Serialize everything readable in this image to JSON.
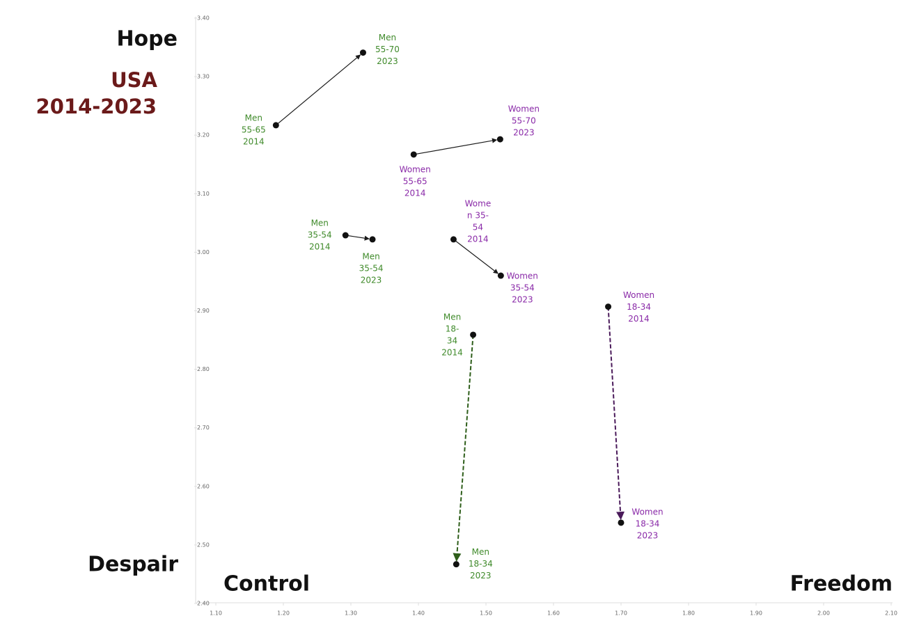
{
  "chart_data": {
    "type": "arrow-scatter",
    "annotations": {
      "top_left": "Hope",
      "bottom_left": "Despair",
      "x_left": "Control",
      "x_right": "Freedom",
      "title": "USA",
      "subtitle": "2014-2023"
    },
    "xlim": [
      1.1,
      2.1
    ],
    "xticks": [
      {
        "value": 1.1,
        "label": "1.10"
      },
      {
        "value": 1.2,
        "label": "1.20"
      },
      {
        "value": 1.3,
        "label": "1.30"
      },
      {
        "value": 1.4,
        "label": "1.40"
      },
      {
        "value": 1.5,
        "label": "1.50"
      },
      {
        "value": 1.6,
        "label": "1.60"
      },
      {
        "value": 1.7,
        "label": "1.70"
      },
      {
        "value": 1.8,
        "label": "1.80"
      },
      {
        "value": 1.9,
        "label": "1.90"
      },
      {
        "value": 2.0,
        "label": "2.00"
      },
      {
        "value": 2.1,
        "label": "2.10"
      }
    ],
    "ylim": [
      2.4,
      3.4
    ],
    "yticks": [
      {
        "value": 2.4,
        "label": "2.40"
      },
      {
        "value": 2.5,
        "label": "2.50"
      },
      {
        "value": 2.6,
        "label": "2.60"
      },
      {
        "value": 2.7,
        "label": "2.70"
      },
      {
        "value": 2.8,
        "label": "2.80"
      },
      {
        "value": 2.9,
        "label": "2.90"
      },
      {
        "value": 3.0,
        "label": "3.00"
      },
      {
        "value": 3.1,
        "label": "3.10"
      },
      {
        "value": 3.2,
        "label": "3.20"
      },
      {
        "value": 3.3,
        "label": "3.30"
      },
      {
        "value": 3.4,
        "label": "3.40"
      }
    ],
    "arrows": [
      {
        "color": "#1a1a1a",
        "dashed": false,
        "label_color": "#3f8a2a",
        "from": {
          "x": 1.189,
          "y": 3.217,
          "label": [
            "Men",
            "55-65",
            "2014"
          ]
        },
        "to": {
          "x": 1.318,
          "y": 3.341,
          "label": [
            "Men",
            "55-70",
            "2023"
          ]
        }
      },
      {
        "color": "#1a1a1a",
        "dashed": false,
        "label_color": "#8a2aa8",
        "from": {
          "x": 1.393,
          "y": 3.167,
          "label": [
            "Women",
            "55-65",
            "2014"
          ]
        },
        "to": {
          "x": 1.521,
          "y": 3.193,
          "label": [
            "Women",
            "55-70",
            "2023"
          ]
        }
      },
      {
        "color": "#1a1a1a",
        "dashed": false,
        "label_color": "#3f8a2a",
        "from": {
          "x": 1.292,
          "y": 3.029,
          "label": [
            "Men",
            "35-54",
            "2014"
          ]
        },
        "to": {
          "x": 1.332,
          "y": 3.022,
          "label": [
            "Men",
            "35-54",
            "2023"
          ]
        }
      },
      {
        "color": "#1a1a1a",
        "dashed": false,
        "label_color": "#8a2aa8",
        "from": {
          "x": 1.452,
          "y": 3.022,
          "label": [
            "Wome",
            "n 35-",
            "54",
            "2014"
          ]
        },
        "to": {
          "x": 1.522,
          "y": 2.96,
          "label": [
            "Women",
            "35-54",
            "2023"
          ]
        }
      },
      {
        "color": "#2e5e1a",
        "dashed": true,
        "label_color": "#3f8a2a",
        "from": {
          "x": 1.481,
          "y": 2.859,
          "label": [
            "Men",
            "18-",
            "34",
            "2014"
          ]
        },
        "to": {
          "x": 1.456,
          "y": 2.467,
          "label": [
            "Men",
            "18-34",
            "2023"
          ]
        }
      },
      {
        "color": "#4a1a5a",
        "dashed": true,
        "label_color": "#8a2aa8",
        "from": {
          "x": 1.681,
          "y": 2.907,
          "label": [
            "Women",
            "18-34",
            "2014"
          ]
        },
        "to": {
          "x": 1.7,
          "y": 2.538,
          "label": [
            "Women",
            "18-34",
            "2023"
          ]
        }
      }
    ]
  }
}
